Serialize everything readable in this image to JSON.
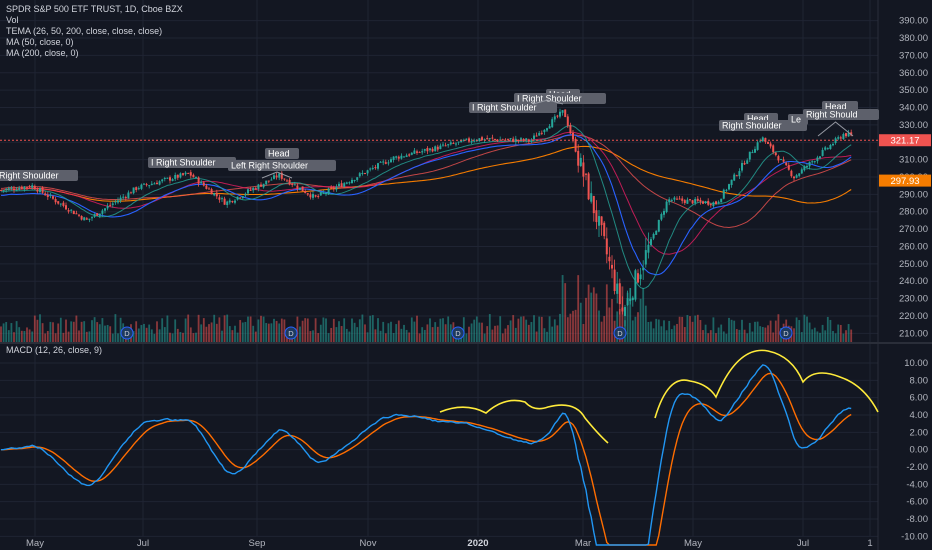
{
  "legend": {
    "title": "SPDR S&P 500 ETF TRUST, 1D, Cboe BZX",
    "lines": [
      "Vol",
      "TEMA (26, 50, 200, close, close, close)",
      "MA (50, close, 0)",
      "MA (200, close, 0)"
    ]
  },
  "indicator_legend": "MACD (12, 26, close, 9)",
  "colors": {
    "background": "#131722",
    "grid": "#1f2433",
    "up": "#26a69a",
    "down": "#ef5350",
    "macd": "#2196f3",
    "signal": "#ff6d00",
    "annotation": "#ffeb3b",
    "tema1": "#26a69a",
    "tema2": "#e91e63",
    "tema3": "#ef5350",
    "ma50": "#2962ff",
    "ma200": "#f57c00"
  },
  "chart_data": [
    {
      "type": "candlestick",
      "x_axis_labels": [
        "May",
        "Jul",
        "Sep",
        "Nov",
        "2020",
        "Mar",
        "May",
        "Jul",
        "1"
      ],
      "y_axis_ticks": [
        "390.00",
        "380.00",
        "370.00",
        "360.00",
        "350.00",
        "340.00",
        "330.00",
        "320.00",
        "310.00",
        "300.00",
        "290.00",
        "280.00",
        "270.00",
        "260.00",
        "250.00",
        "240.00",
        "230.00",
        "220.00",
        "210.00"
      ],
      "ylim": [
        205,
        395
      ],
      "last_price_label": "321.17",
      "ma200_label": "297.93",
      "close_series_approx": [
        {
          "date": "2019-04",
          "close": 292
        },
        {
          "date": "2019-05-01",
          "close": 295
        },
        {
          "date": "2019-05-31",
          "close": 275
        },
        {
          "date": "2019-06-28",
          "close": 294
        },
        {
          "date": "2019-07-26",
          "close": 302
        },
        {
          "date": "2019-08-15",
          "close": 285
        },
        {
          "date": "2019-09-13",
          "close": 301
        },
        {
          "date": "2019-10-03",
          "close": 288
        },
        {
          "date": "2019-11-15",
          "close": 311
        },
        {
          "date": "2019-12-31",
          "close": 322
        },
        {
          "date": "2020-01-31",
          "close": 321
        },
        {
          "date": "2020-02-19",
          "close": 338
        },
        {
          "date": "2020-03-09",
          "close": 275
        },
        {
          "date": "2020-03-23",
          "close": 222
        },
        {
          "date": "2020-04-17",
          "close": 287
        },
        {
          "date": "2020-05-14",
          "close": 285
        },
        {
          "date": "2020-06-08",
          "close": 323
        },
        {
          "date": "2020-06-26",
          "close": 300
        },
        {
          "date": "2020-07-20",
          "close": 325
        },
        {
          "date": "2020-07-28",
          "close": 321
        }
      ],
      "pattern_labels": [
        {
          "text": "Right Shoulder"
        },
        {
          "text": "Right Shoulder",
          "prefix": "I"
        },
        {
          "text": "Left Right Shoulder"
        },
        {
          "text": "Head"
        },
        {
          "text": "Right Shoulder",
          "prefix": "I"
        },
        {
          "text": "Right Shoulder",
          "prefix": "I"
        },
        {
          "text": "Head"
        },
        {
          "text": "Head"
        },
        {
          "text": "Right Shoulder"
        },
        {
          "text": "Le"
        },
        {
          "text": "Head"
        },
        {
          "text": "Right Should"
        }
      ],
      "dividend_markers": [
        "D",
        "D",
        "D",
        "D",
        "D"
      ]
    },
    {
      "type": "line",
      "title": "MACD (12, 26, close, 9)",
      "y_axis_ticks": [
        "10.00",
        "8.00",
        "6.00",
        "4.00",
        "2.00",
        "0.00",
        "-2.00",
        "-4.00",
        "-6.00",
        "-8.00",
        "-10.00"
      ],
      "ylim": [
        -11,
        11.5
      ],
      "series": [
        {
          "name": "MACD",
          "color": "#2196f3"
        },
        {
          "name": "Signal",
          "color": "#ff6d00"
        }
      ]
    }
  ]
}
